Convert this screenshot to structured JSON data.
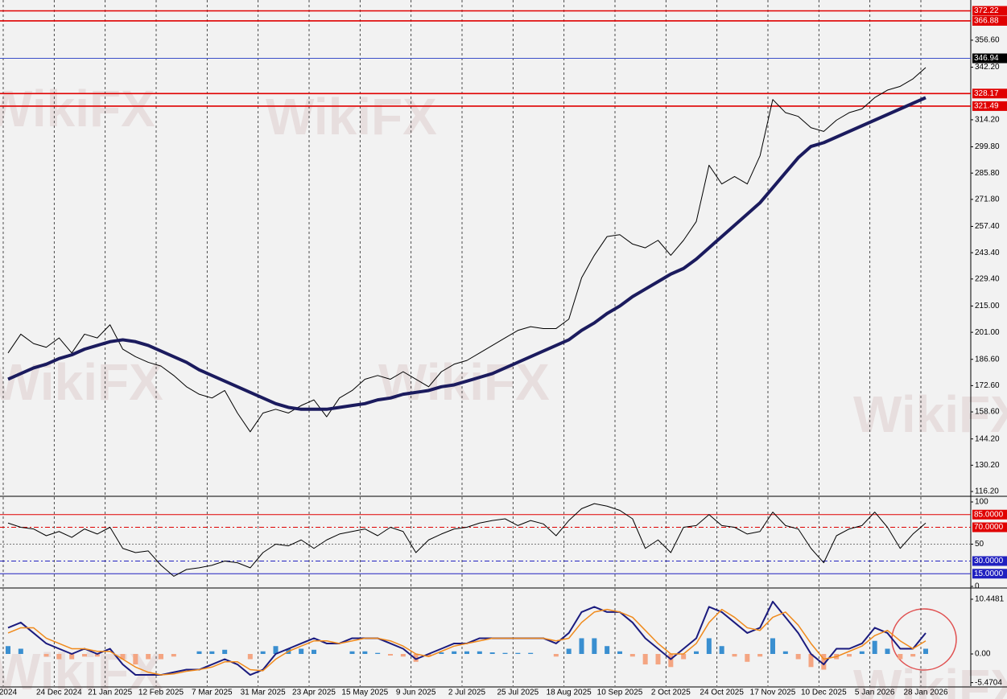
{
  "chart_data": [
    {
      "type": "line",
      "watermark": "WikiFX",
      "categories": [
        "2024",
        null,
        null,
        null,
        "24 Dec 2024",
        null,
        null,
        null,
        "21 Jan 2025",
        null,
        null,
        null,
        "12 Feb 2025",
        null,
        null,
        null,
        "7 Mar 2025",
        null,
        null,
        null,
        "31 Mar 2025",
        null,
        null,
        null,
        "23 Apr 2025",
        null,
        null,
        null,
        "15 May 2025",
        null,
        null,
        null,
        "9 Jun 2025",
        null,
        null,
        null,
        "2 Jul 2025",
        null,
        null,
        null,
        "25 Jul 2025",
        null,
        null,
        null,
        "18 Aug 2025",
        null,
        null,
        null,
        "10 Sep 2025",
        null,
        null,
        null,
        "2 Oct 2025",
        null,
        null,
        null,
        "24 Oct 2025",
        null,
        null,
        null,
        "17 Nov 2025",
        null,
        null,
        null,
        "10 Dec 2025",
        null,
        null,
        null,
        "5 Jan 2026",
        null,
        null,
        null,
        "28 Jan 2026"
      ],
      "series": [
        {
          "color": "#000000",
          "width": 1,
          "values": [
            190,
            200,
            195,
            193,
            198,
            190,
            200,
            198,
            205,
            192,
            188,
            185,
            183,
            178,
            172,
            168,
            166,
            170,
            158,
            148,
            158,
            160,
            158,
            162,
            165,
            156,
            166,
            170,
            176,
            178,
            176,
            180,
            176,
            172,
            180,
            184,
            186,
            190,
            194,
            198,
            202,
            204,
            203,
            203,
            208,
            230,
            242,
            252,
            253,
            248,
            246,
            250,
            242,
            250,
            260,
            290,
            280,
            284,
            280,
            295,
            325,
            318,
            316,
            310,
            308,
            314,
            318,
            320,
            326,
            330,
            332,
            336,
            342
          ]
        },
        {
          "color": "#1b1b5e",
          "width": 4,
          "values": [
            176,
            179,
            182,
            184,
            187,
            189,
            192,
            194,
            196,
            197,
            196,
            194,
            191,
            188,
            185,
            181,
            178,
            175,
            172,
            169,
            166,
            163,
            161,
            160,
            160,
            160,
            161,
            162,
            163,
            165,
            166,
            168,
            169,
            170,
            172,
            173,
            175,
            177,
            179,
            182,
            185,
            188,
            191,
            194,
            197,
            202,
            206,
            211,
            215,
            220,
            224,
            228,
            232,
            235,
            240,
            246,
            252,
            258,
            264,
            270,
            278,
            286,
            294,
            300,
            302,
            305,
            308,
            311,
            314,
            317,
            320,
            323,
            326
          ]
        }
      ],
      "ylim": [
        114.5,
        378
      ],
      "yticks": [
        {
          "value": 356.6,
          "label": "356.60"
        },
        {
          "value": 342.2,
          "label": "342.20"
        },
        {
          "value": 314.2,
          "label": "314.20"
        },
        {
          "value": 299.8,
          "label": "299.80"
        },
        {
          "value": 285.8,
          "label": "285.80"
        },
        {
          "value": 271.8,
          "label": "271.80"
        },
        {
          "value": 257.4,
          "label": "257.40"
        },
        {
          "value": 243.4,
          "label": "243.40"
        },
        {
          "value": 229.4,
          "label": "229.40"
        },
        {
          "value": 215,
          "label": "215.00"
        },
        {
          "value": 201,
          "label": "201.00"
        },
        {
          "value": 186.6,
          "label": "186.60"
        },
        {
          "value": 172.6,
          "label": "172.60"
        },
        {
          "value": 158.6,
          "label": "158.60"
        },
        {
          "value": 144.2,
          "label": "144.20"
        },
        {
          "value": 130.2,
          "label": "130.20"
        },
        {
          "value": 116.2,
          "label": "116.20"
        }
      ],
      "hlines": [
        {
          "value": 372.22,
          "color": "#e00000"
        },
        {
          "value": 366.88,
          "color": "#e00000"
        },
        {
          "value": 346.94,
          "color": "#3a4fc8"
        },
        {
          "value": 328.17,
          "color": "#e00000"
        },
        {
          "value": 321.49,
          "color": "#e00000"
        }
      ],
      "grid": true
    },
    {
      "type": "line",
      "series": [
        {
          "color": "#000000",
          "width": 1,
          "values": [
            75,
            70,
            68,
            60,
            65,
            58,
            68,
            62,
            70,
            45,
            40,
            42,
            25,
            12,
            20,
            22,
            25,
            30,
            28,
            22,
            40,
            50,
            48,
            55,
            45,
            55,
            62,
            65,
            68,
            60,
            70,
            65,
            40,
            55,
            62,
            68,
            70,
            75,
            78,
            80,
            72,
            78,
            74,
            60,
            78,
            92,
            98,
            95,
            90,
            80,
            45,
            55,
            40,
            70,
            72,
            85,
            72,
            70,
            62,
            65,
            88,
            72,
            68,
            45,
            28,
            60,
            68,
            72,
            88,
            70,
            45,
            62,
            75
          ]
        }
      ],
      "ylim": [
        0,
        100
      ],
      "yticks": [
        100,
        50,
        0
      ],
      "hlines": [
        {
          "value": 85,
          "label": "85.0000",
          "color": "#e00000"
        },
        {
          "value": 70,
          "label": "70.0000",
          "color": "#e00000",
          "dashed": true
        },
        {
          "value": 30,
          "label": "30.0000",
          "color": "#2020c0",
          "dashed": true
        },
        {
          "value": 15,
          "label": "15.0000",
          "color": "#2020c0"
        }
      ],
      "grid": true
    },
    {
      "type": "bar",
      "values": [
        1.5,
        1,
        0,
        -0.5,
        -1,
        -1,
        -0.5,
        -0.5,
        0,
        -1,
        -2,
        -1,
        -1,
        -0.5,
        0,
        0.5,
        0.5,
        0.8,
        0,
        -1,
        0.5,
        1.5,
        1,
        1,
        0.8,
        0,
        0,
        0.5,
        0.5,
        0.2,
        -0.3,
        -0.5,
        -1.5,
        -0.5,
        0.3,
        0.5,
        0.5,
        0.5,
        0.3,
        0.2,
        0.2,
        0.2,
        0,
        -0.5,
        1,
        3,
        3,
        1.5,
        0.5,
        -0.5,
        -2,
        -2,
        -2.5,
        -1,
        0.5,
        3,
        1.5,
        -0.5,
        -1.5,
        -0.5,
        3,
        0.5,
        -1,
        -2.5,
        -3,
        -1,
        -0.5,
        0.5,
        2.5,
        1,
        -1,
        -0.5,
        1
      ],
      "positive_color": "#3a8fd0",
      "negative_color": "#f4a582",
      "series": [
        {
          "color": "#1b1b7e",
          "width": 2,
          "values": [
            5,
            6,
            4,
            2,
            1,
            0,
            1,
            0,
            1,
            -2,
            -4,
            -4,
            -4,
            -3.5,
            -3,
            -3,
            -2,
            -1,
            -2,
            -4,
            -3,
            0,
            1,
            2,
            3,
            2,
            2,
            3,
            3,
            3,
            2,
            1,
            -1,
            0,
            1,
            2,
            2,
            3,
            3,
            3,
            3,
            3,
            3,
            2,
            4,
            8,
            9,
            8,
            8,
            6,
            3,
            1,
            -1,
            1,
            3,
            9,
            8,
            6,
            4,
            5,
            10,
            7,
            4,
            0,
            -2,
            1,
            1,
            2,
            5,
            4,
            1,
            1,
            4
          ]
        },
        {
          "color": "#f08a1c",
          "width": 1.5,
          "values": [
            4,
            5,
            5,
            3,
            2,
            1,
            1,
            0.5,
            0.5,
            -1,
            -2.5,
            -3.5,
            -4,
            -3.8,
            -3.3,
            -3,
            -2.5,
            -1.5,
            -1.5,
            -3,
            -3.2,
            -1,
            0.5,
            1.5,
            2.5,
            2.5,
            2,
            2.5,
            3,
            3,
            2.5,
            1.5,
            0,
            -0.5,
            0.5,
            1.5,
            2,
            2.5,
            3,
            3,
            3,
            3,
            3,
            2.5,
            3,
            6,
            8,
            8.5,
            8,
            7,
            4.5,
            2,
            0,
            0,
            2,
            6,
            8.5,
            7,
            5,
            4.5,
            7,
            8,
            5.5,
            2,
            -1,
            -0.5,
            0.5,
            1.5,
            3.5,
            4.5,
            2.5,
            1,
            2.5
          ]
        }
      ],
      "ylim": [
        -5.99,
        11.52
      ],
      "yticks": [
        10.4481,
        {
          "value": 0,
          "label": "0.00"
        },
        -5.4704
      ],
      "grid": true
    }
  ]
}
